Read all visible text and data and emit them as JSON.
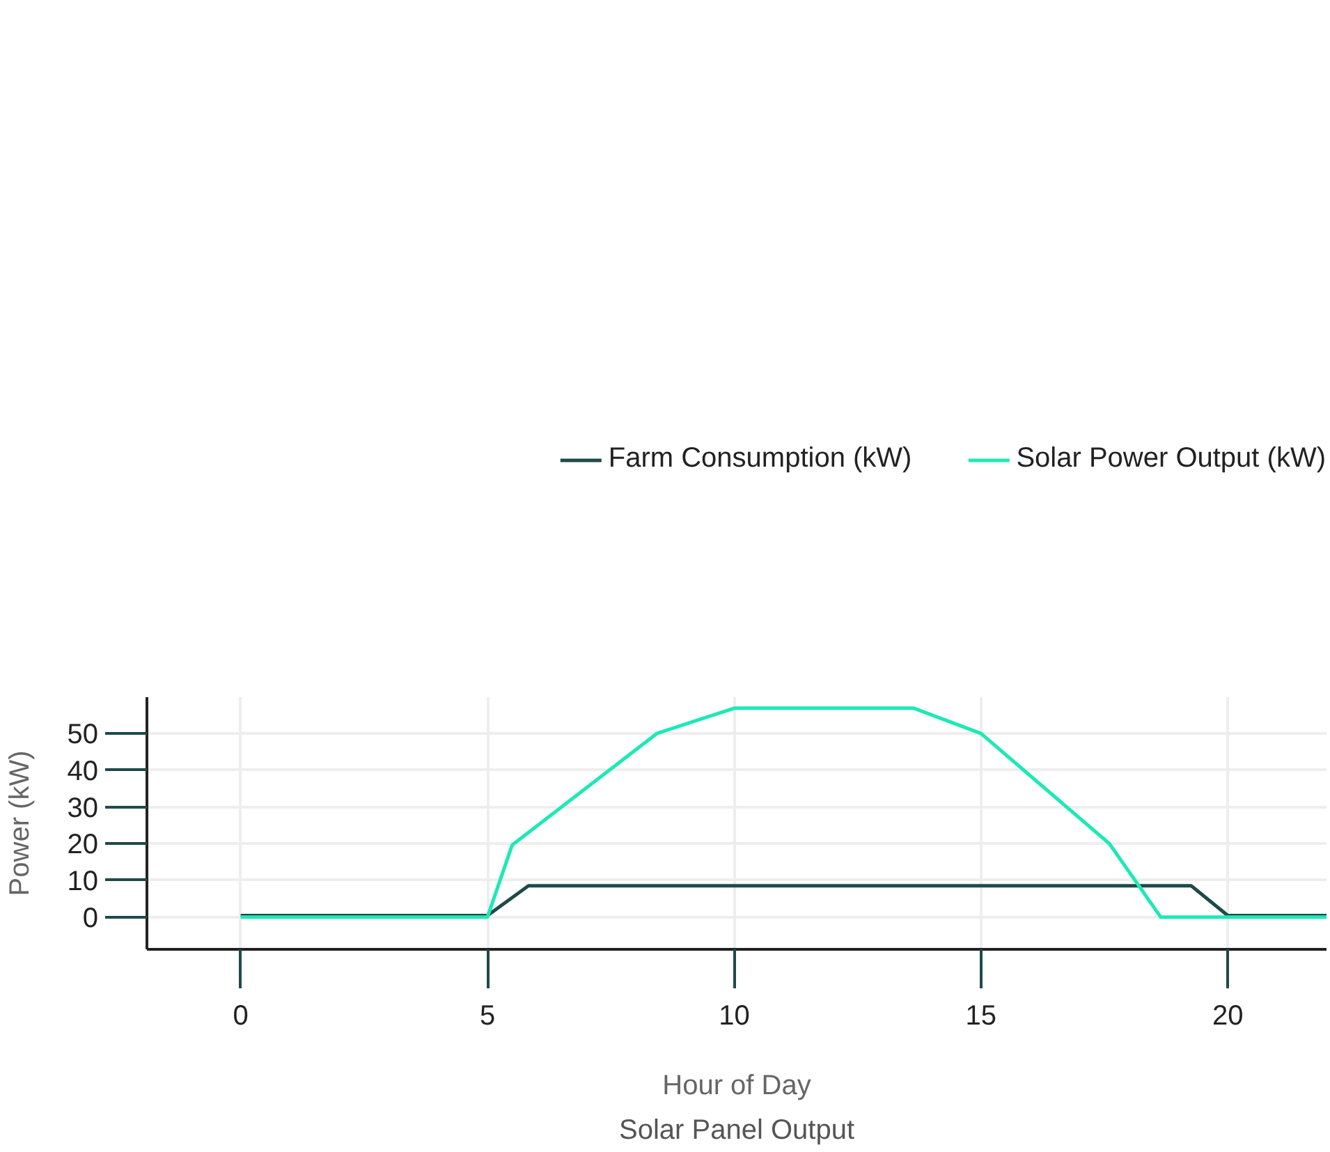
{
  "chart_data": {
    "type": "line",
    "title": "Solar Panel Output",
    "xlabel": "Hour of Day",
    "ylabel": "Power (kW)",
    "xlim": [
      -1.9,
      22
    ],
    "ylim": [
      -8.8,
      59.9
    ],
    "xticks": [
      0,
      5,
      10,
      15,
      20
    ],
    "yticks": [
      0,
      10,
      20,
      30,
      40,
      50
    ],
    "grid": true,
    "legend": "top",
    "marker": "none",
    "line_style": "solid",
    "series": [
      {
        "name": "Farm Consumption (kW)",
        "color": "#1f4a4a",
        "x": [
          0,
          5,
          5.83,
          19.26,
          20,
          22
        ],
        "values": [
          0.4,
          0.4,
          8.5,
          8.5,
          0.4,
          0.4
        ]
      },
      {
        "name": "Solar Power Output (kW)",
        "color": "#1de9b6",
        "x": [
          0,
          5,
          5.5,
          8.43,
          10,
          13.64,
          15,
          17.6,
          18.64,
          22
        ],
        "values": [
          0,
          0,
          19.6,
          50,
          56.9,
          56.9,
          50,
          20,
          0,
          0
        ]
      }
    ]
  }
}
